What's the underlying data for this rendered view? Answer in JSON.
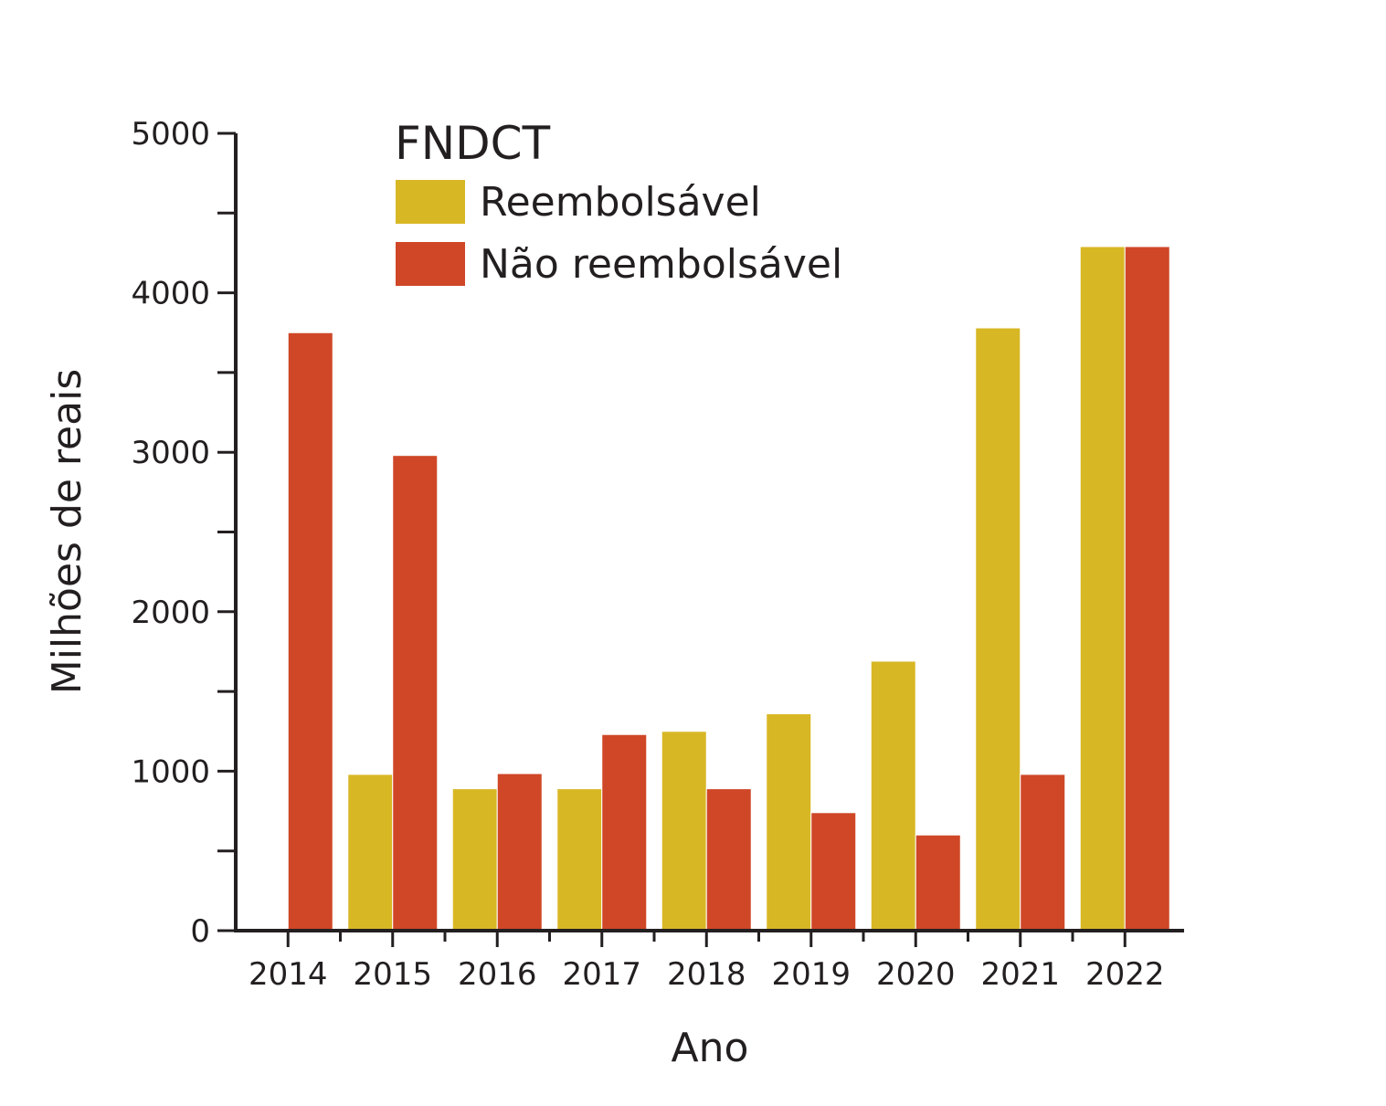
{
  "chart_data": {
    "type": "bar",
    "categories": [
      "2014",
      "2015",
      "2016",
      "2017",
      "2018",
      "2019",
      "2020",
      "2021",
      "2022"
    ],
    "series": [
      {
        "name": "Reembolsável",
        "color": "#d8b725",
        "values": [
          0,
          980,
          890,
          890,
          1250,
          1360,
          1690,
          3780,
          4290
        ]
      },
      {
        "name": "Não reembolsável",
        "color": "#cf4727",
        "values": [
          3750,
          2980,
          985,
          1230,
          890,
          740,
          600,
          980,
          4290
        ]
      }
    ],
    "legend_title": "FNDCT",
    "legend_position": "top-left",
    "xlabel": "Ano",
    "ylabel": "Milhões de reais",
    "ylim": [
      0,
      5000
    ],
    "yticks": [
      "0",
      "1000",
      "2000",
      "3000",
      "4000",
      "5000"
    ],
    "grid": false
  }
}
